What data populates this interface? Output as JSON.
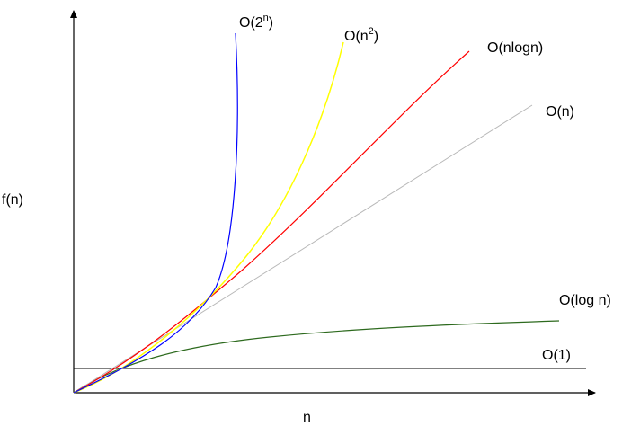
{
  "chart_data": {
    "type": "line",
    "xlabel": "n",
    "ylabel": "f(n)",
    "grid": false,
    "series": [
      {
        "name": "O(1)",
        "color": "#000000"
      },
      {
        "name": "O(log n)",
        "color": "#2d6a1e"
      },
      {
        "name": "O(n)",
        "color": "#b8b8b8"
      },
      {
        "name": "O(nlogn)",
        "color": "#ff0000"
      },
      {
        "name": "O(n2)",
        "base": "O(n",
        "sup": "2",
        "tail": ")",
        "color": "#ffff00"
      },
      {
        "name": "O(2n)",
        "base": "O(2",
        "sup": "n",
        "tail": ")",
        "color": "#0000ff"
      }
    ]
  }
}
